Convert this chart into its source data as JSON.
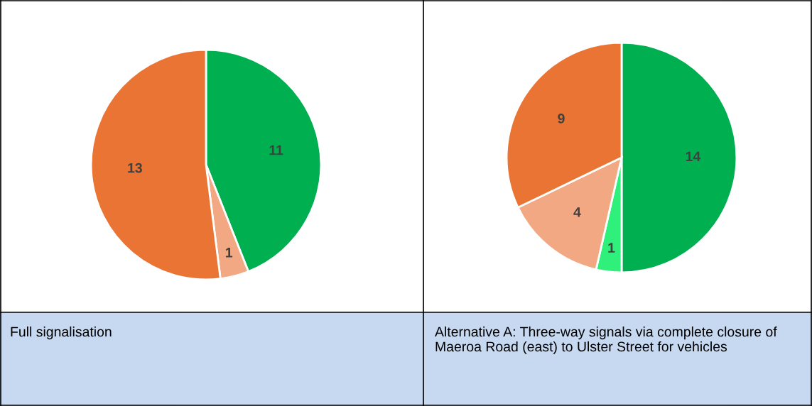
{
  "chart_data": [
    {
      "type": "pie",
      "title": "Full signalisation",
      "categories": [
        null,
        null,
        null
      ],
      "values": [
        11,
        1,
        13
      ],
      "colors": [
        "#00b050",
        "#f2a882",
        "#e97434"
      ],
      "data_labels": true
    },
    {
      "type": "pie",
      "title": "Alternative A: Three-way signals via complete closure of Maeroa Road (east) to Ulster Street for vehicles",
      "categories": [
        null,
        null,
        null,
        null
      ],
      "values": [
        14,
        1,
        4,
        9
      ],
      "colors": [
        "#00b050",
        "#2ef07a",
        "#f2a882",
        "#e97434"
      ],
      "data_labels": true
    }
  ]
}
